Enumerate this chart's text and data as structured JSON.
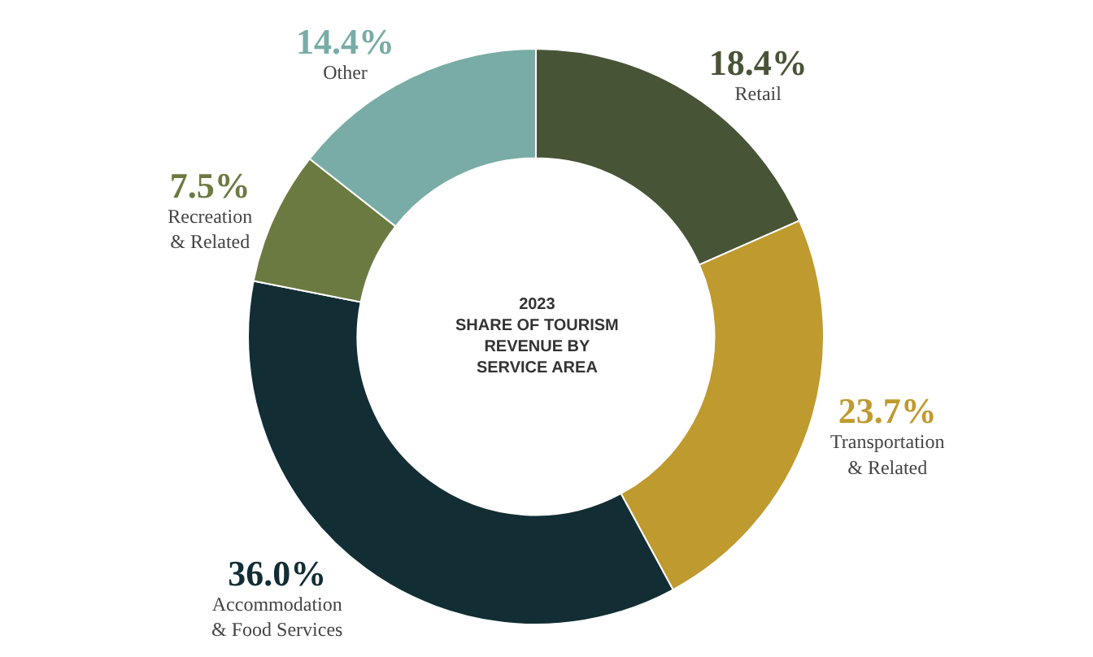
{
  "chart_data": {
    "type": "donut",
    "title": "2023\nSHARE OF TOURISM\nREVENUE BY\nSERVICE AREA",
    "categories": [
      "Retail",
      "Transportation\n& Related",
      "Accommodation\n& Food Services",
      "Recreation\n& Related",
      "Other"
    ],
    "values": [
      18.4,
      23.7,
      36.0,
      7.5,
      14.4
    ],
    "colors": [
      "#485436",
      "#bf9a2f",
      "#122e34",
      "#6b7a41",
      "#79aca6"
    ],
    "value_labels": [
      "18.4%",
      "23.7%",
      "36.0%",
      "7.5%",
      "14.4%"
    ],
    "legend": false
  }
}
